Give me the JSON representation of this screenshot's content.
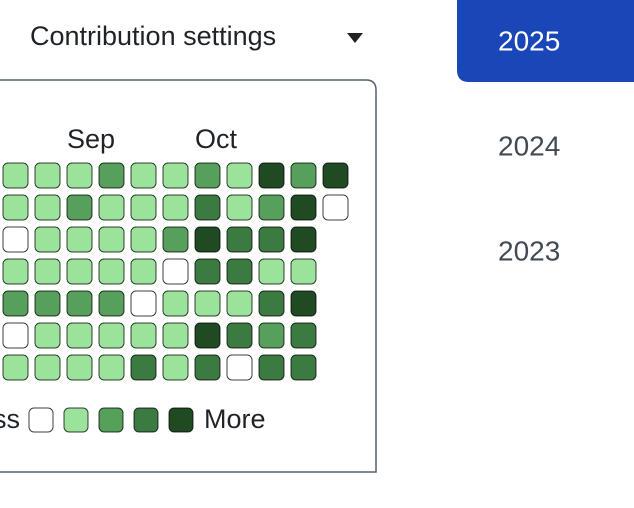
{
  "header": {
    "settings_label": "Contribution settings"
  },
  "graph": {
    "months": [
      "Sep",
      "Oct"
    ],
    "level_colors": [
      "#ffffff",
      "#9be29b",
      "#55a05a",
      "#3b7a41",
      "#1f4a22"
    ],
    "levels": [
      [
        1,
        1,
        1,
        2,
        1,
        1,
        2,
        1,
        4,
        2,
        4
      ],
      [
        1,
        1,
        2,
        1,
        1,
        1,
        3,
        1,
        2,
        4,
        0
      ],
      [
        0,
        1,
        1,
        1,
        1,
        2,
        4,
        3,
        3,
        4
      ],
      [
        1,
        1,
        1,
        1,
        1,
        0,
        3,
        3,
        1,
        1
      ],
      [
        2,
        2,
        2,
        2,
        0,
        1,
        1,
        1,
        3,
        4
      ],
      [
        0,
        1,
        1,
        1,
        1,
        1,
        4,
        3,
        2,
        3
      ],
      [
        1,
        1,
        1,
        1,
        3,
        1,
        3,
        0,
        3,
        3
      ]
    ],
    "legend": {
      "less_label": "ss",
      "more_label": "More",
      "levels": [
        0,
        1,
        2,
        3,
        4
      ]
    }
  },
  "years": {
    "items": [
      "2025",
      "2024",
      "2023"
    ],
    "selected": "2025"
  }
}
